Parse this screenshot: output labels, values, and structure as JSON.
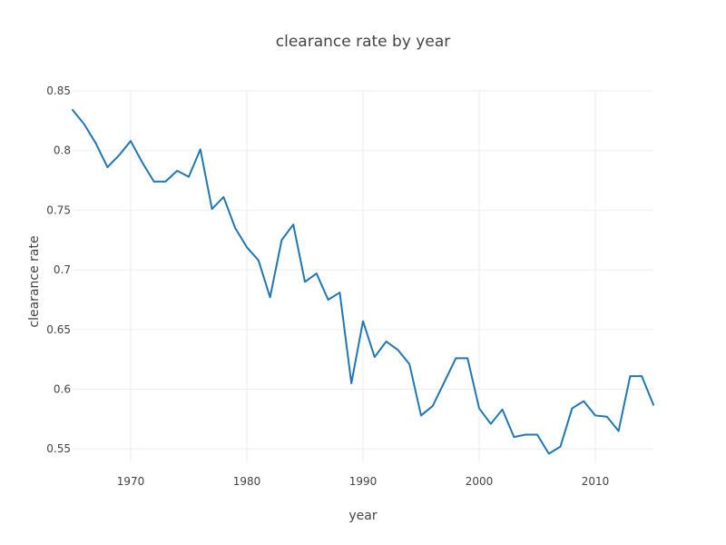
{
  "chart_data": {
    "type": "line",
    "title": "clearance rate by year",
    "xlabel": "year",
    "ylabel": "clearance rate",
    "xlim": [
      1965,
      2015
    ],
    "ylim": [
      0.538,
      0.85
    ],
    "x_ticks": [
      1970,
      1980,
      1990,
      2000,
      2010
    ],
    "y_ticks": [
      0.55,
      0.6,
      0.65,
      0.7,
      0.75,
      0.8,
      0.85
    ],
    "y_tick_labels": [
      "0.55",
      "0.6",
      "0.65",
      "0.7",
      "0.75",
      "0.8",
      "0.85"
    ],
    "grid": true,
    "line_color": "#1f77b4",
    "x": [
      1965,
      1966,
      1967,
      1968,
      1969,
      1970,
      1971,
      1972,
      1973,
      1974,
      1975,
      1976,
      1977,
      1978,
      1979,
      1980,
      1981,
      1982,
      1983,
      1984,
      1985,
      1986,
      1987,
      1988,
      1989,
      1990,
      1991,
      1992,
      1993,
      1994,
      1995,
      1996,
      1997,
      1998,
      1999,
      2000,
      2001,
      2002,
      2003,
      2004,
      2005,
      2006,
      2007,
      2008,
      2009,
      2010,
      2011,
      2012,
      2013,
      2014,
      2015
    ],
    "values": [
      0.834,
      0.822,
      0.806,
      0.786,
      0.796,
      0.808,
      0.79,
      0.774,
      0.774,
      0.783,
      0.778,
      0.801,
      0.751,
      0.761,
      0.735,
      0.719,
      0.708,
      0.677,
      0.725,
      0.738,
      0.69,
      0.697,
      0.675,
      0.681,
      0.605,
      0.657,
      0.627,
      0.64,
      0.633,
      0.621,
      0.578,
      0.586,
      0.606,
      0.626,
      0.626,
      0.584,
      0.571,
      0.583,
      0.56,
      0.562,
      0.562,
      0.546,
      0.552,
      0.584,
      0.59,
      0.578,
      0.577,
      0.565,
      0.611,
      0.611,
      0.587
    ]
  }
}
